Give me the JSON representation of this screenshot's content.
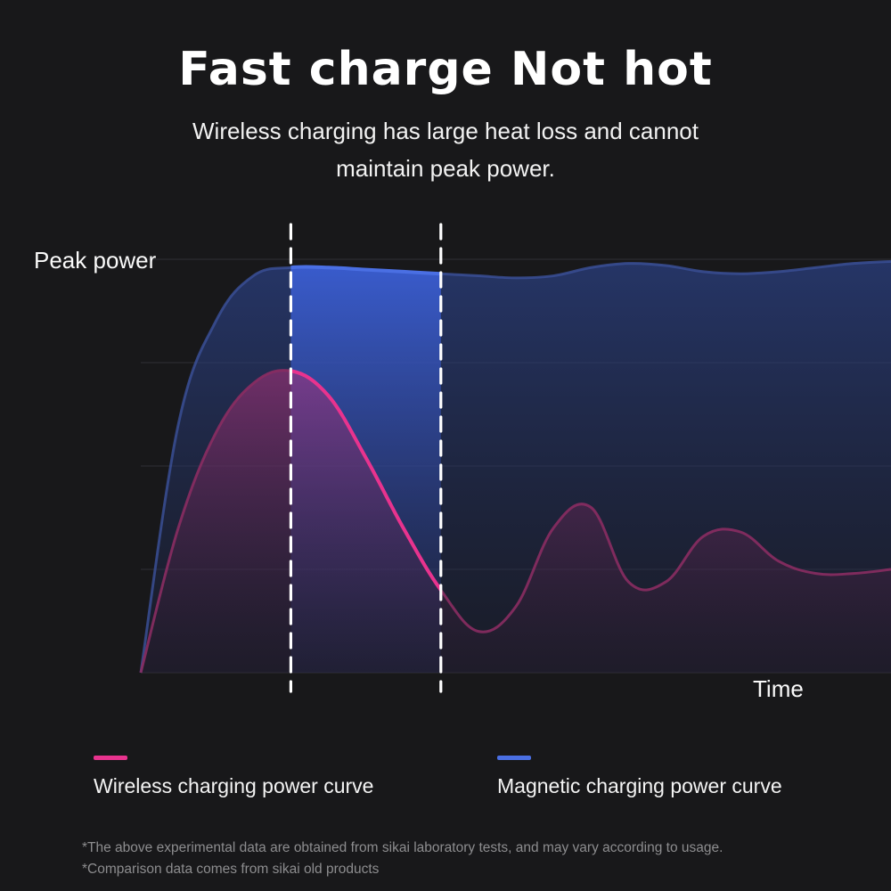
{
  "header": {
    "title": "Fast charge Not hot",
    "subtitle": "Wireless charging has large heat loss and cannot maintain peak power."
  },
  "chart_data": {
    "type": "area",
    "title": "Fast charge Not hot",
    "ylabel": "Peak power",
    "xlabel": "Time",
    "xlim": [
      0,
      100
    ],
    "ylim": [
      0,
      100
    ],
    "grid": true,
    "legend_position": "bottom",
    "x": [
      0,
      5,
      10,
      15,
      20,
      25,
      30,
      35,
      40,
      45,
      50,
      55,
      60,
      65,
      70,
      75,
      80,
      85,
      90,
      95,
      100
    ],
    "series": [
      {
        "name": "Wireless charging power curve",
        "color": "#e8338e",
        "values": [
          0,
          35,
          58,
          70,
          73,
          67,
          52,
          35,
          20,
          10,
          16,
          35,
          40,
          22,
          22,
          33,
          34,
          27,
          24,
          24,
          25
        ]
      },
      {
        "name": "Magnetic charging power curve",
        "color": "#4a6fe3",
        "values": [
          0,
          60,
          85,
          96,
          98,
          98,
          97.5,
          97,
          96.5,
          96,
          95.5,
          96,
          98,
          99,
          98.5,
          97,
          96.5,
          97,
          98,
          99,
          99.5
        ]
      }
    ],
    "highlight_band": [
      20,
      40
    ]
  },
  "legend": {
    "items": [
      {
        "label": "Wireless charging power curve",
        "color": "#e8338e"
      },
      {
        "label": "Magnetic charging power curve",
        "color": "#4a6fe3"
      }
    ]
  },
  "footnotes": [
    "*The above experimental data are obtained from sikai laboratory tests, and may vary according to usage.",
    "*Comparison data comes from sikai old products"
  ]
}
